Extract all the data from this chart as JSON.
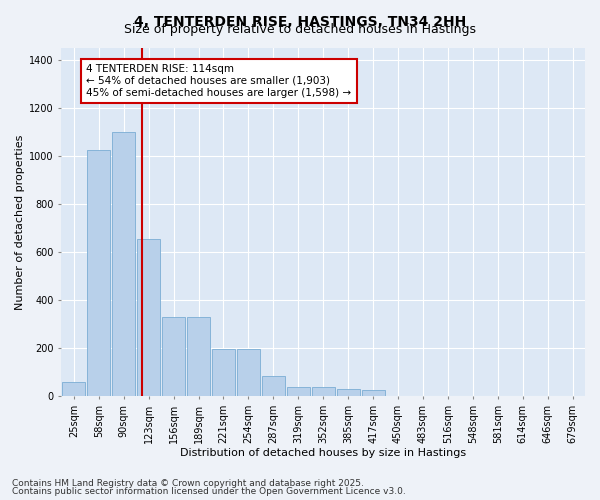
{
  "title_line1": "4, TENTERDEN RISE, HASTINGS, TN34 2HH",
  "title_line2": "Size of property relative to detached houses in Hastings",
  "xlabel": "Distribution of detached houses by size in Hastings",
  "ylabel": "Number of detached properties",
  "bar_color": "#b8d0ea",
  "bar_edge_color": "#7aadd4",
  "background_color": "#dde8f5",
  "grid_color": "#ffffff",
  "fig_background": "#eef2f8",
  "categories": [
    "25sqm",
    "58sqm",
    "90sqm",
    "123sqm",
    "156sqm",
    "189sqm",
    "221sqm",
    "254sqm",
    "287sqm",
    "319sqm",
    "352sqm",
    "385sqm",
    "417sqm",
    "450sqm",
    "483sqm",
    "516sqm",
    "548sqm",
    "581sqm",
    "614sqm",
    "646sqm",
    "679sqm"
  ],
  "values": [
    60,
    1025,
    1100,
    655,
    330,
    330,
    195,
    195,
    85,
    40,
    40,
    30,
    25,
    0,
    0,
    0,
    0,
    0,
    0,
    0,
    0
  ],
  "vline_position": 2.72,
  "vline_color": "#cc0000",
  "annotation_text": "4 TENTERDEN RISE: 114sqm\n← 54% of detached houses are smaller (1,903)\n45% of semi-detached houses are larger (1,598) →",
  "annotation_box_color": "#ffffff",
  "annotation_box_edge": "#cc0000",
  "ylim": [
    0,
    1450
  ],
  "yticks": [
    0,
    200,
    400,
    600,
    800,
    1000,
    1200,
    1400
  ],
  "footer_line1": "Contains HM Land Registry data © Crown copyright and database right 2025.",
  "footer_line2": "Contains public sector information licensed under the Open Government Licence v3.0.",
  "title_fontsize": 10,
  "subtitle_fontsize": 9,
  "axis_label_fontsize": 8,
  "tick_fontsize": 7,
  "annotation_fontsize": 7.5,
  "footer_fontsize": 6.5
}
